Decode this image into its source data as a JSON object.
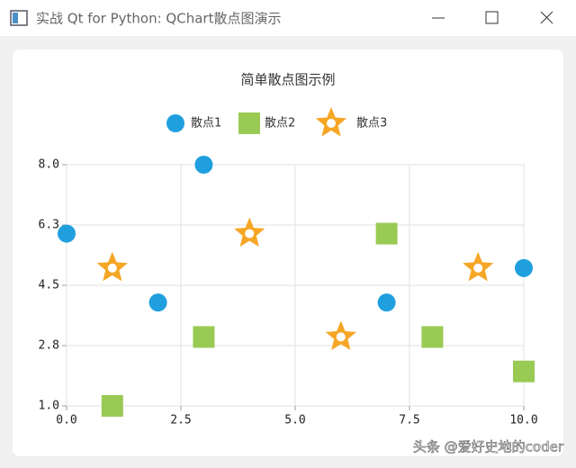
{
  "window": {
    "title": "实战 Qt for Python: QChart散点图演示"
  },
  "watermark": "头条 @爱好史地的coder",
  "chart_data": {
    "type": "scatter",
    "title": "简单散点图示例",
    "series": [
      {
        "name": "散点1",
        "color": "#209fdf",
        "marker": "circle",
        "x": [
          0,
          2,
          3,
          7,
          10
        ],
        "values": [
          6,
          4,
          8,
          4,
          5
        ]
      },
      {
        "name": "散点2",
        "color": "#99ca53",
        "marker": "square",
        "x": [
          1,
          3,
          7,
          8,
          10
        ],
        "values": [
          1,
          3,
          6,
          3,
          2
        ]
      },
      {
        "name": "散点3",
        "color": "#f6a625",
        "marker": "star",
        "x": [
          1,
          4,
          6,
          9
        ],
        "values": [
          5,
          6,
          3,
          5
        ]
      }
    ],
    "xlim": [
      0,
      10
    ],
    "xticks": [
      {
        "value": 0,
        "label": "0.0"
      },
      {
        "value": 2.5,
        "label": "2.5"
      },
      {
        "value": 5,
        "label": "5.0"
      },
      {
        "value": 7.5,
        "label": "7.5"
      },
      {
        "value": 10,
        "label": "10.0"
      }
    ],
    "ylim": [
      1,
      8
    ],
    "yticks": [
      {
        "value": 1,
        "label": "1.0"
      },
      {
        "value": 2.75,
        "label": "2.8"
      },
      {
        "value": 4.5,
        "label": "4.5"
      },
      {
        "value": 6.25,
        "label": "6.3"
      },
      {
        "value": 8,
        "label": "8.0"
      }
    ],
    "grid": true,
    "legend": "top"
  }
}
